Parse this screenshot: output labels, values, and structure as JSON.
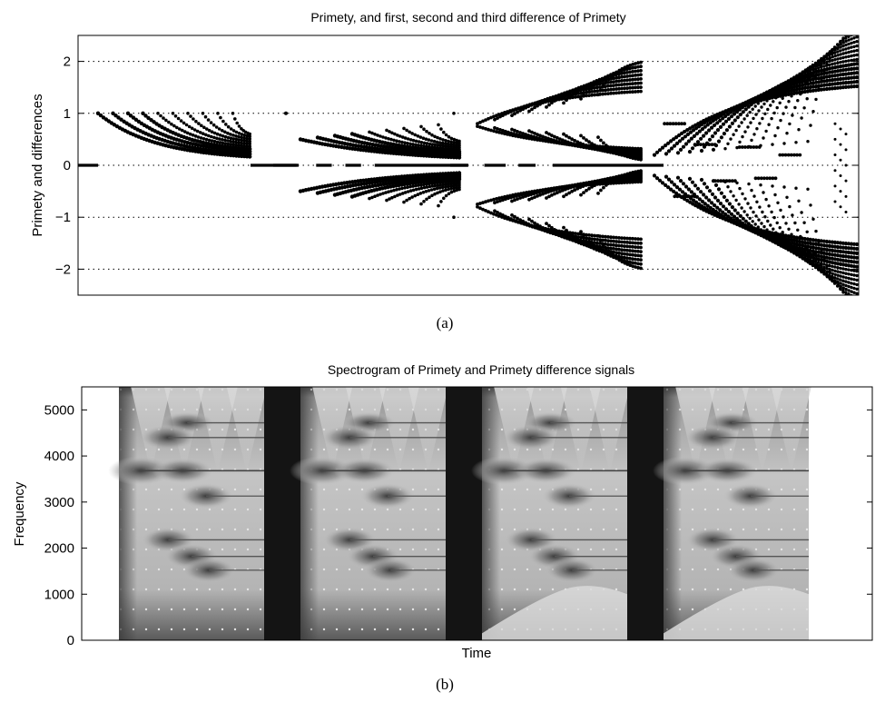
{
  "chart_data": [
    {
      "id": "a",
      "type": "scatter",
      "title": "Primety, and first, second and third difference of Primety",
      "ylabel": "Primety and differences",
      "xlabel": "",
      "caption": "(a)",
      "ylim": [
        -2.5,
        2.5
      ],
      "yticks": [
        -2,
        -1,
        0,
        1,
        2
      ],
      "ytick_labels": [
        "−2",
        "−1",
        "0",
        "1",
        "2"
      ],
      "grid": "dotted horizontal at ticks",
      "panels": [
        {
          "name": "Primety",
          "kind": "positive-fan",
          "curves": 11,
          "x_range": [
            0.0,
            0.25
          ]
        },
        {
          "name": "first difference",
          "kind": "symmetric-fan",
          "curves": 9,
          "x_range": [
            0.25,
            0.5
          ]
        },
        {
          "name": "second difference",
          "kind": "double-fan",
          "curves": 8,
          "x_range": [
            0.5,
            0.75
          ]
        },
        {
          "name": "third difference",
          "kind": "wide-fan",
          "curves": 14,
          "x_range": [
            0.75,
            1.0
          ]
        }
      ]
    },
    {
      "id": "b",
      "type": "heatmap",
      "title": "Spectrogram of Primety and Primety difference signals",
      "xlabel": "Time",
      "ylabel": "Frequency",
      "caption": "(b)",
      "ylim": [
        0,
        5500
      ],
      "yticks": [
        0,
        1000,
        2000,
        3000,
        4000,
        5000
      ],
      "ytick_labels": [
        "0",
        "1000",
        "2000",
        "3000",
        "4000",
        "5000"
      ],
      "segments": 4,
      "tone_lines_hz": [
        4720,
        4400,
        3680,
        3130,
        2180,
        1820,
        1520
      ]
    }
  ]
}
